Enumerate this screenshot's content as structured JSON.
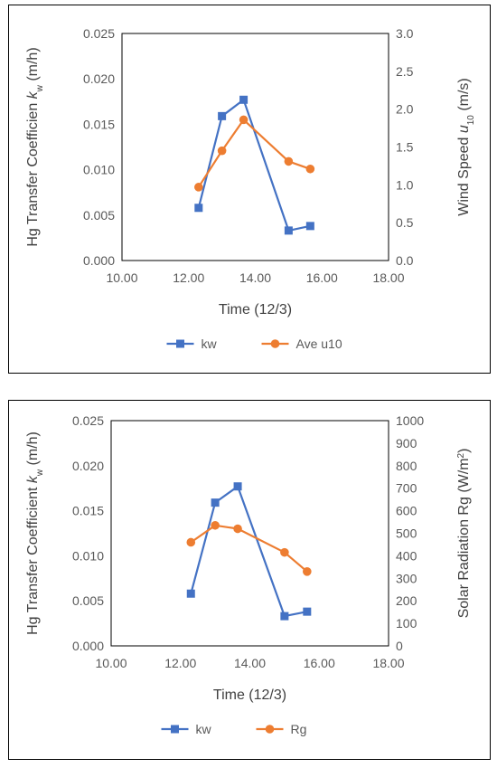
{
  "chart_data": [
    {
      "type": "line",
      "xlabel": "Time (12/3)",
      "ylabel": "Hg Transfer Coefficien k_w (m/h)",
      "ylabel_right": "Wind Speed u_10 (m/s)",
      "xlim": [
        10,
        18
      ],
      "ylim": [
        0,
        0.025
      ],
      "ylim_right": [
        0,
        3.0
      ],
      "x_ticks": [
        "10.00",
        "12.00",
        "14.00",
        "16.00",
        "18.00"
      ],
      "y_ticks": [
        "0.000",
        "0.005",
        "0.010",
        "0.015",
        "0.020",
        "0.025"
      ],
      "y_ticks_right": [
        "0.0",
        "0.5",
        "1.0",
        "1.5",
        "2.0",
        "2.5",
        "3.0"
      ],
      "grid": false,
      "legend_position": "bottom",
      "series": [
        {
          "name": "kw",
          "axis": "left",
          "marker": "square",
          "color": "#4472C4",
          "x": [
            12.3,
            13.0,
            13.65,
            15.0,
            15.65
          ],
          "y": [
            0.0058,
            0.0159,
            0.0177,
            0.0033,
            0.0038
          ]
        },
        {
          "name": "Ave u10",
          "axis": "right",
          "marker": "circle",
          "color": "#ED7D31",
          "x": [
            12.3,
            13.0,
            13.65,
            15.0,
            15.65
          ],
          "y": [
            0.97,
            1.45,
            1.86,
            1.31,
            1.21
          ]
        }
      ]
    },
    {
      "type": "line",
      "xlabel": "Time (12/3)",
      "ylabel": "Hg Transfer Coefficient k_w (m/h)",
      "ylabel_right": "Solar Radiation Rg (W/m²)",
      "xlim": [
        10,
        18
      ],
      "ylim": [
        0,
        0.025
      ],
      "ylim_right": [
        0,
        1000
      ],
      "x_ticks": [
        "10.00",
        "12.00",
        "14.00",
        "16.00",
        "18.00"
      ],
      "y_ticks": [
        "0.000",
        "0.005",
        "0.010",
        "0.015",
        "0.020",
        "0.025"
      ],
      "y_ticks_right": [
        "0",
        "100",
        "200",
        "300",
        "400",
        "500",
        "600",
        "700",
        "800",
        "900",
        "1000"
      ],
      "grid": false,
      "legend_position": "bottom",
      "series": [
        {
          "name": "kw",
          "axis": "left",
          "marker": "square",
          "color": "#4472C4",
          "x": [
            12.3,
            13.0,
            13.65,
            15.0,
            15.65
          ],
          "y": [
            0.0058,
            0.0159,
            0.0177,
            0.0033,
            0.0038
          ]
        },
        {
          "name": "Rg",
          "axis": "right",
          "marker": "circle",
          "color": "#ED7D31",
          "x": [
            12.3,
            13.0,
            13.65,
            15.0,
            15.65
          ],
          "y": [
            460,
            535,
            520,
            415,
            330
          ]
        }
      ]
    }
  ]
}
